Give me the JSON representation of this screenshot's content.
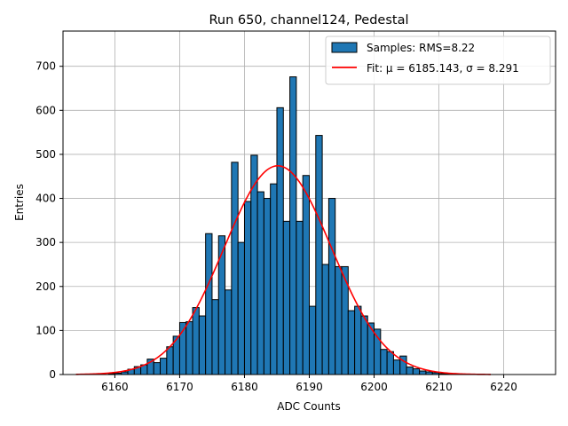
{
  "chart_data": {
    "type": "bar",
    "title": "Run 650, channel124, Pedestal",
    "xlabel": "ADC Counts",
    "ylabel": "Entries",
    "xlim": [
      6152,
      6228
    ],
    "ylim": [
      0,
      780
    ],
    "xticks": [
      6160,
      6170,
      6180,
      6190,
      6200,
      6210,
      6220
    ],
    "yticks": [
      0,
      100,
      200,
      300,
      400,
      500,
      600,
      700
    ],
    "grid": true,
    "legend_position": "top-right",
    "legend": {
      "histogram": "Samples: RMS=8.22",
      "fit": "Fit: μ = 6185.143, σ = 8.291"
    },
    "histogram": {
      "name": "Samples: RMS=8.22",
      "color": "#1f77b4",
      "edge_color": "#000000",
      "bin_width": 1.0,
      "bin_lefts": [
        6159,
        6160,
        6161,
        6162,
        6163,
        6164,
        6165,
        6166,
        6167,
        6168,
        6169,
        6170,
        6171,
        6172,
        6173,
        6174,
        6175,
        6176,
        6177,
        6178,
        6179,
        6180,
        6181,
        6182,
        6183,
        6184,
        6185,
        6186,
        6187,
        6188,
        6189,
        6190,
        6191,
        6192,
        6193,
        6194,
        6195,
        6196,
        6197,
        6198,
        6199,
        6200,
        6201,
        6202,
        6203,
        6204,
        6205,
        6206,
        6207,
        6208,
        6209,
        6210,
        6211,
        6212
      ],
      "values": [
        2,
        3,
        6,
        12,
        18,
        22,
        35,
        27,
        37,
        63,
        87,
        118,
        120,
        152,
        133,
        320,
        170,
        315,
        192,
        482,
        300,
        393,
        498,
        415,
        400,
        433,
        606,
        348,
        676,
        348,
        452,
        155,
        543,
        250,
        400,
        245,
        245,
        145,
        155,
        133,
        117,
        103,
        57,
        52,
        33,
        42,
        17,
        13,
        8,
        6,
        4,
        2,
        1,
        1
      ]
    },
    "fit": {
      "name": "Fit: μ = 6185.143, σ = 8.291",
      "color": "#ff0000",
      "mu": 6185.143,
      "sigma": 8.291,
      "peak": 474,
      "x_range": [
        6154,
        6218
      ]
    }
  }
}
